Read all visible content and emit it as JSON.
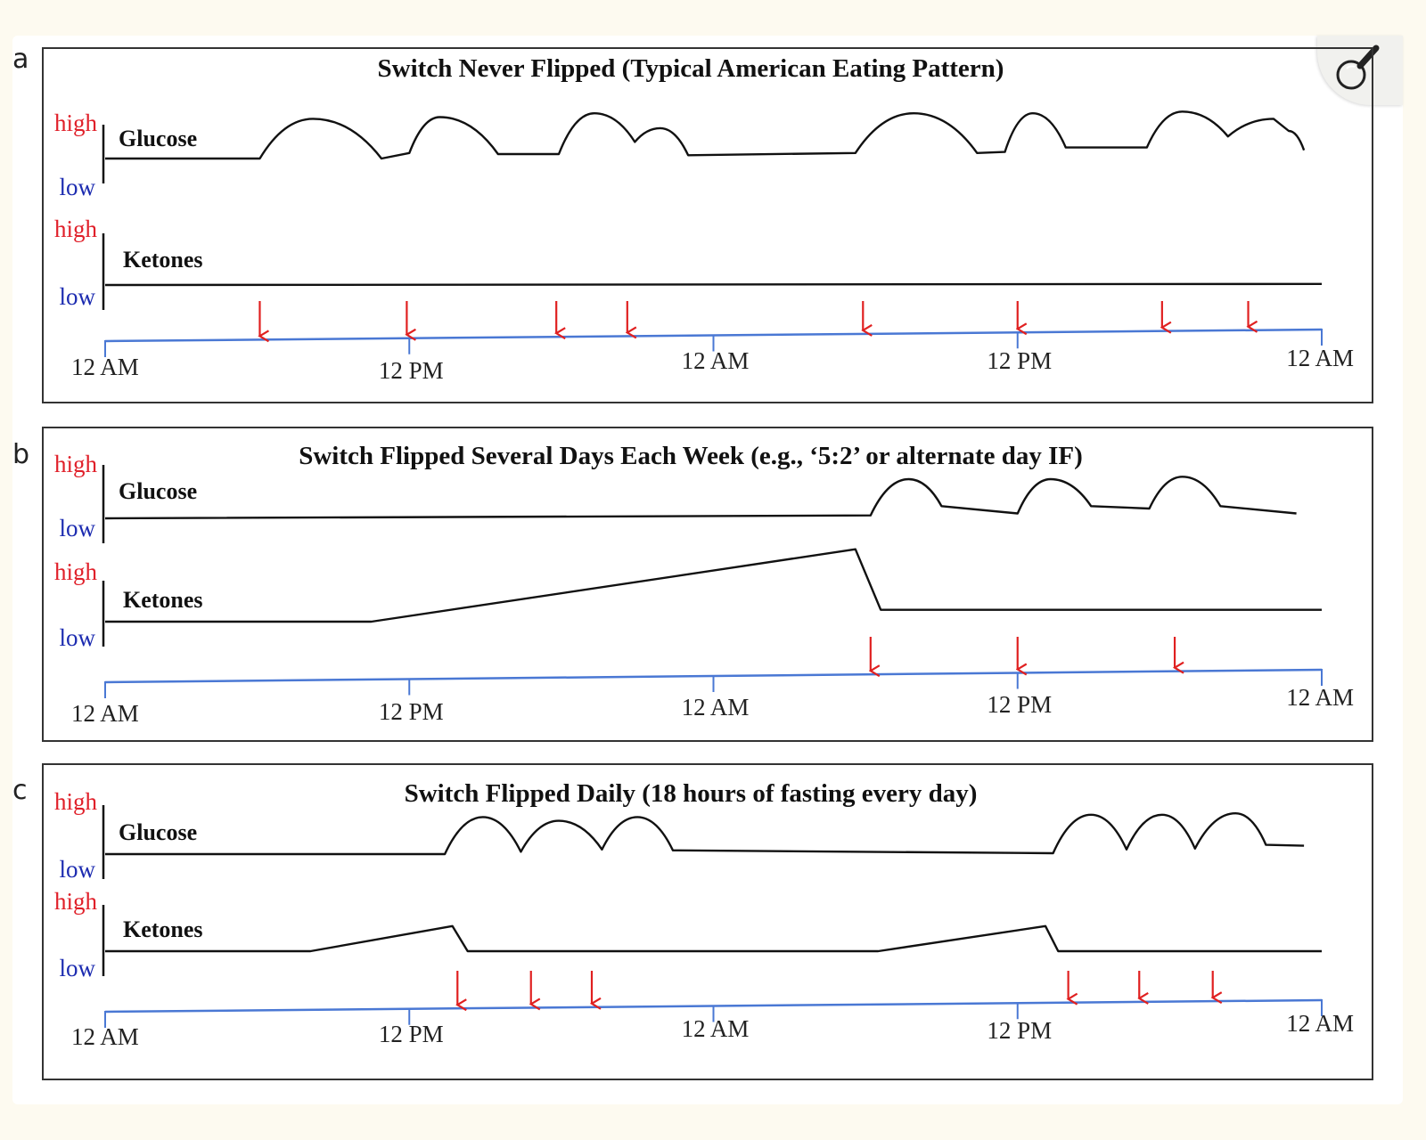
{
  "colors": {
    "background": "#fdfaf0",
    "curve": "#111111",
    "timeline": "#4a78d4",
    "arrow": "#e02020",
    "high": "#e0202a",
    "low": "#1c2bb0"
  },
  "zoom_icon": "magnifier-icon",
  "chart_data": [
    {
      "type": "line",
      "panel": "a",
      "title": "Switch Never Flipped (Typical American Eating Pattern)",
      "x_unit": "hours from first 12 AM",
      "x_range": [
        0,
        48
      ],
      "tick_labels": [
        {
          "label": "12 AM",
          "x": 0
        },
        {
          "label": "12 PM",
          "x": 12
        },
        {
          "label": "12 AM",
          "x": 24
        },
        {
          "label": "12 PM",
          "x": 36
        },
        {
          "label": "12 AM",
          "x": 48
        }
      ],
      "level_labels": {
        "high": "high",
        "low": "low"
      },
      "series": [
        {
          "name": "Glucose",
          "y_range": [
            0,
            1
          ],
          "x": [
            0,
            6.1,
            8.2,
            10.9,
            12.0,
            13.2,
            15.5,
            17.9,
            19.3,
            20.9,
            21.9,
            23.0,
            29.6,
            31.9,
            34.4,
            35.5,
            36.6,
            37.9,
            41.1,
            42.5,
            44.3,
            46.1,
            46.7,
            47.3
          ],
          "y": [
            0,
            0,
            0.72,
            0,
            0.1,
            0.75,
            0.08,
            0.08,
            0.82,
            0.3,
            0.55,
            0.06,
            0.1,
            0.82,
            0.1,
            0.12,
            0.82,
            0.2,
            0.2,
            0.85,
            0.4,
            0.72,
            0.5,
            0.15
          ]
        },
        {
          "name": "Ketones",
          "y_range": [
            0,
            1
          ],
          "x": [
            0,
            48
          ],
          "y": [
            0,
            0.02
          ]
        }
      ],
      "meal_times": [
        6.1,
        11.9,
        17.8,
        20.6,
        29.9,
        36.0,
        41.7,
        45.1
      ]
    },
    {
      "type": "line",
      "panel": "b",
      "title": "Switch Flipped Several Days Each Week (e.g., ‘5:2’  or alternate day IF)",
      "x_unit": "hours from first 12 AM",
      "x_range": [
        0,
        48
      ],
      "tick_labels": [
        {
          "label": "12 AM",
          "x": 0
        },
        {
          "label": "12 PM",
          "x": 12
        },
        {
          "label": "12 AM",
          "x": 24
        },
        {
          "label": "12 PM",
          "x": 36
        },
        {
          "label": "12 AM",
          "x": 48
        }
      ],
      "level_labels": {
        "high": "high",
        "low": "low"
      },
      "series": [
        {
          "name": "Glucose",
          "y_range": [
            0,
            1
          ],
          "x": [
            0,
            30.2,
            31.7,
            33.0,
            36.0,
            37.3,
            38.9,
            41.2,
            42.5,
            44.0,
            47.0
          ],
          "y": [
            0,
            0.06,
            0.8,
            0.25,
            0.1,
            0.8,
            0.25,
            0.2,
            0.85,
            0.25,
            0.1
          ]
        },
        {
          "name": "Ketones",
          "y_range": [
            0,
            1
          ],
          "x": [
            0,
            10.5,
            29.6,
            30.6,
            48
          ],
          "y": [
            0,
            0,
            0.98,
            0.16,
            0.16
          ]
        }
      ],
      "meal_times": [
        30.2,
        36.0,
        42.2
      ]
    },
    {
      "type": "line",
      "panel": "c",
      "title": "Switch Flipped Daily (18 hours of fasting every day)",
      "x_unit": "hours from first 12 AM",
      "x_range": [
        0,
        48
      ],
      "tick_labels": [
        {
          "label": "12 AM",
          "x": 0
        },
        {
          "label": "12 PM",
          "x": 12
        },
        {
          "label": "12 AM",
          "x": 24
        },
        {
          "label": "12 PM",
          "x": 36
        },
        {
          "label": "12 AM",
          "x": 48
        }
      ],
      "level_labels": {
        "high": "high",
        "low": "low"
      },
      "series": [
        {
          "name": "Glucose",
          "y_range": [
            0,
            1
          ],
          "x": [
            0,
            13.4,
            14.9,
            16.4,
            17.9,
            19.6,
            21.0,
            22.4,
            37.4,
            38.9,
            40.3,
            41.7,
            43.0,
            44.6,
            45.8,
            47.3
          ],
          "y": [
            0,
            0,
            0.8,
            0.05,
            0.72,
            0.1,
            0.8,
            0.08,
            0.02,
            0.85,
            0.1,
            0.85,
            0.12,
            0.88,
            0.2,
            0.18
          ]
        },
        {
          "name": "Ketones",
          "y_range": [
            0,
            1
          ],
          "x": [
            0,
            8.1,
            13.7,
            14.3,
            30.5,
            37.1,
            37.6,
            48
          ],
          "y": [
            0,
            0,
            0.64,
            0,
            0,
            0.64,
            0,
            0
          ]
        }
      ],
      "meal_times": [
        13.9,
        16.8,
        19.2,
        38.0,
        40.8,
        43.7
      ]
    }
  ]
}
